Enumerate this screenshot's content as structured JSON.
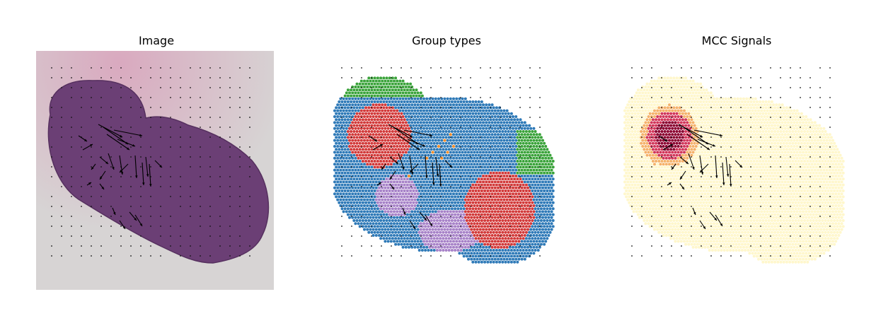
{
  "panels": [
    {
      "title": "Image",
      "kind": "histology-image"
    },
    {
      "title": "Group types",
      "kind": "cluster-spots"
    },
    {
      "title": "MCC Signals",
      "kind": "signal-heatmap"
    }
  ],
  "colors": {
    "tissue": "#6b3f75",
    "background_slide": "#d7d4d4",
    "cluster_blue": "#2f7ab8",
    "cluster_red": "#d23a3a",
    "cluster_green": "#3aa33a",
    "cluster_orange": "#f28e2b",
    "cluster_purple": "#a782c8",
    "signal_low": "#fff7cc",
    "signal_mid": "#f5b26b",
    "signal_high": "#8b0030",
    "arrow": "#000000"
  }
}
